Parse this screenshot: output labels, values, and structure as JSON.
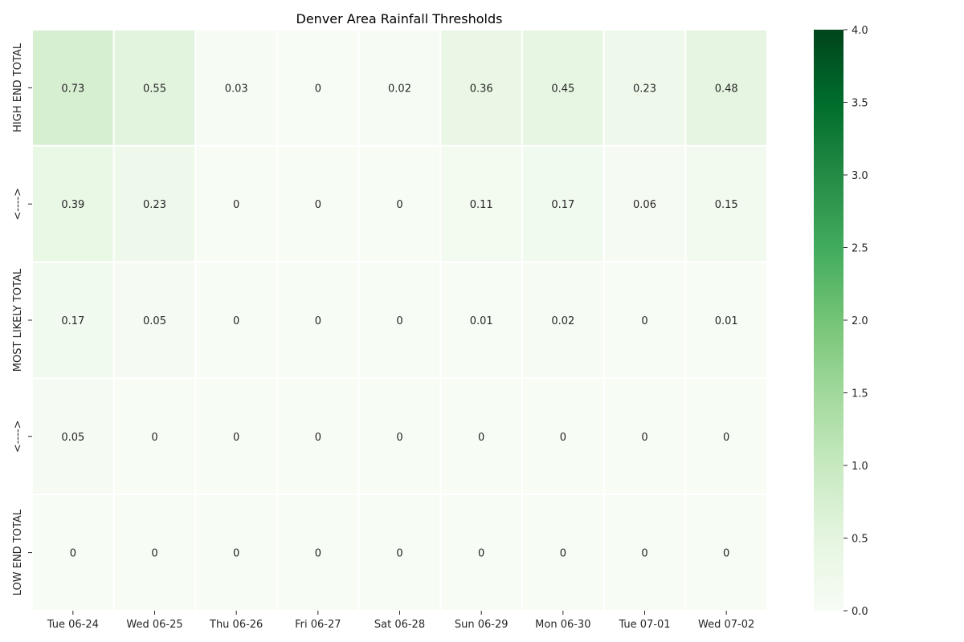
{
  "chart_data": {
    "type": "heatmap",
    "title": "Denver Area Rainfall Thresholds",
    "xlabel": "",
    "ylabel": "",
    "x_categories": [
      "Tue 06-24",
      "Wed 06-25",
      "Thu 06-26",
      "Fri 06-27",
      "Sat 06-28",
      "Sun 06-29",
      "Mon 06-30",
      "Tue 07-01",
      "Wed 07-02"
    ],
    "y_categories": [
      "HIGH END TOTAL",
      "<---->",
      "MOST LIKELY TOTAL",
      "<---->",
      "LOW END TOTAL"
    ],
    "values": [
      [
        0.73,
        0.55,
        0.03,
        0,
        0.02,
        0.36,
        0.45,
        0.23,
        0.48
      ],
      [
        0.39,
        0.23,
        0,
        0,
        0,
        0.11,
        0.17,
        0.06,
        0.15
      ],
      [
        0.17,
        0.05,
        0,
        0,
        0,
        0.01,
        0.02,
        0,
        0.01
      ],
      [
        0.05,
        0,
        0,
        0,
        0,
        0,
        0,
        0,
        0
      ],
      [
        0,
        0,
        0,
        0,
        0,
        0,
        0,
        0,
        0
      ]
    ],
    "colorbar": {
      "range": [
        0,
        4
      ],
      "ticks": [
        "0.0",
        "0.5",
        "1.0",
        "1.5",
        "2.0",
        "2.5",
        "3.0",
        "3.5",
        "4.0"
      ],
      "colormap": "Greens"
    },
    "grid": false,
    "legend": "colorbar-right"
  }
}
